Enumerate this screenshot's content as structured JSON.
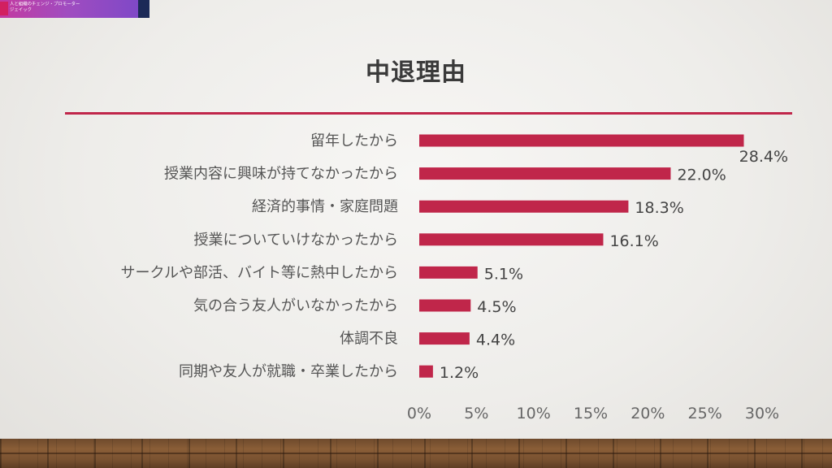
{
  "logo": {
    "line1": "人と組織のチェンジ・プロモーター",
    "line2": "ジェイック"
  },
  "colors": {
    "bar": "#c0264a",
    "title_rule": "#c0264a"
  },
  "chart_data": {
    "type": "bar",
    "orientation": "horizontal",
    "title": "中退理由",
    "categories": [
      "留年したから",
      "授業内容に興味が持てなかったから",
      "経済的事情・家庭問題",
      "授業についていけなかったから",
      "サークルや部活、バイト等に熱中したから",
      "気の合う友人がいなかったから",
      "体調不良",
      "同期や友人が就職・卒業したから"
    ],
    "values": [
      28.4,
      22.0,
      18.3,
      16.1,
      5.1,
      4.5,
      4.4,
      1.2
    ],
    "value_labels": [
      "28.4%",
      "22.0%",
      "18.3%",
      "16.1%",
      "5.1%",
      "4.5%",
      "4.4%",
      "1.2%"
    ],
    "xlim": [
      0,
      30
    ],
    "x_ticks": [
      0,
      5,
      10,
      15,
      20,
      25,
      30
    ],
    "x_tick_labels": [
      "0%",
      "5%",
      "10%",
      "15%",
      "20%",
      "25%",
      "30%"
    ],
    "xlabel": "",
    "ylabel": "",
    "grid": false,
    "legend": "none"
  }
}
